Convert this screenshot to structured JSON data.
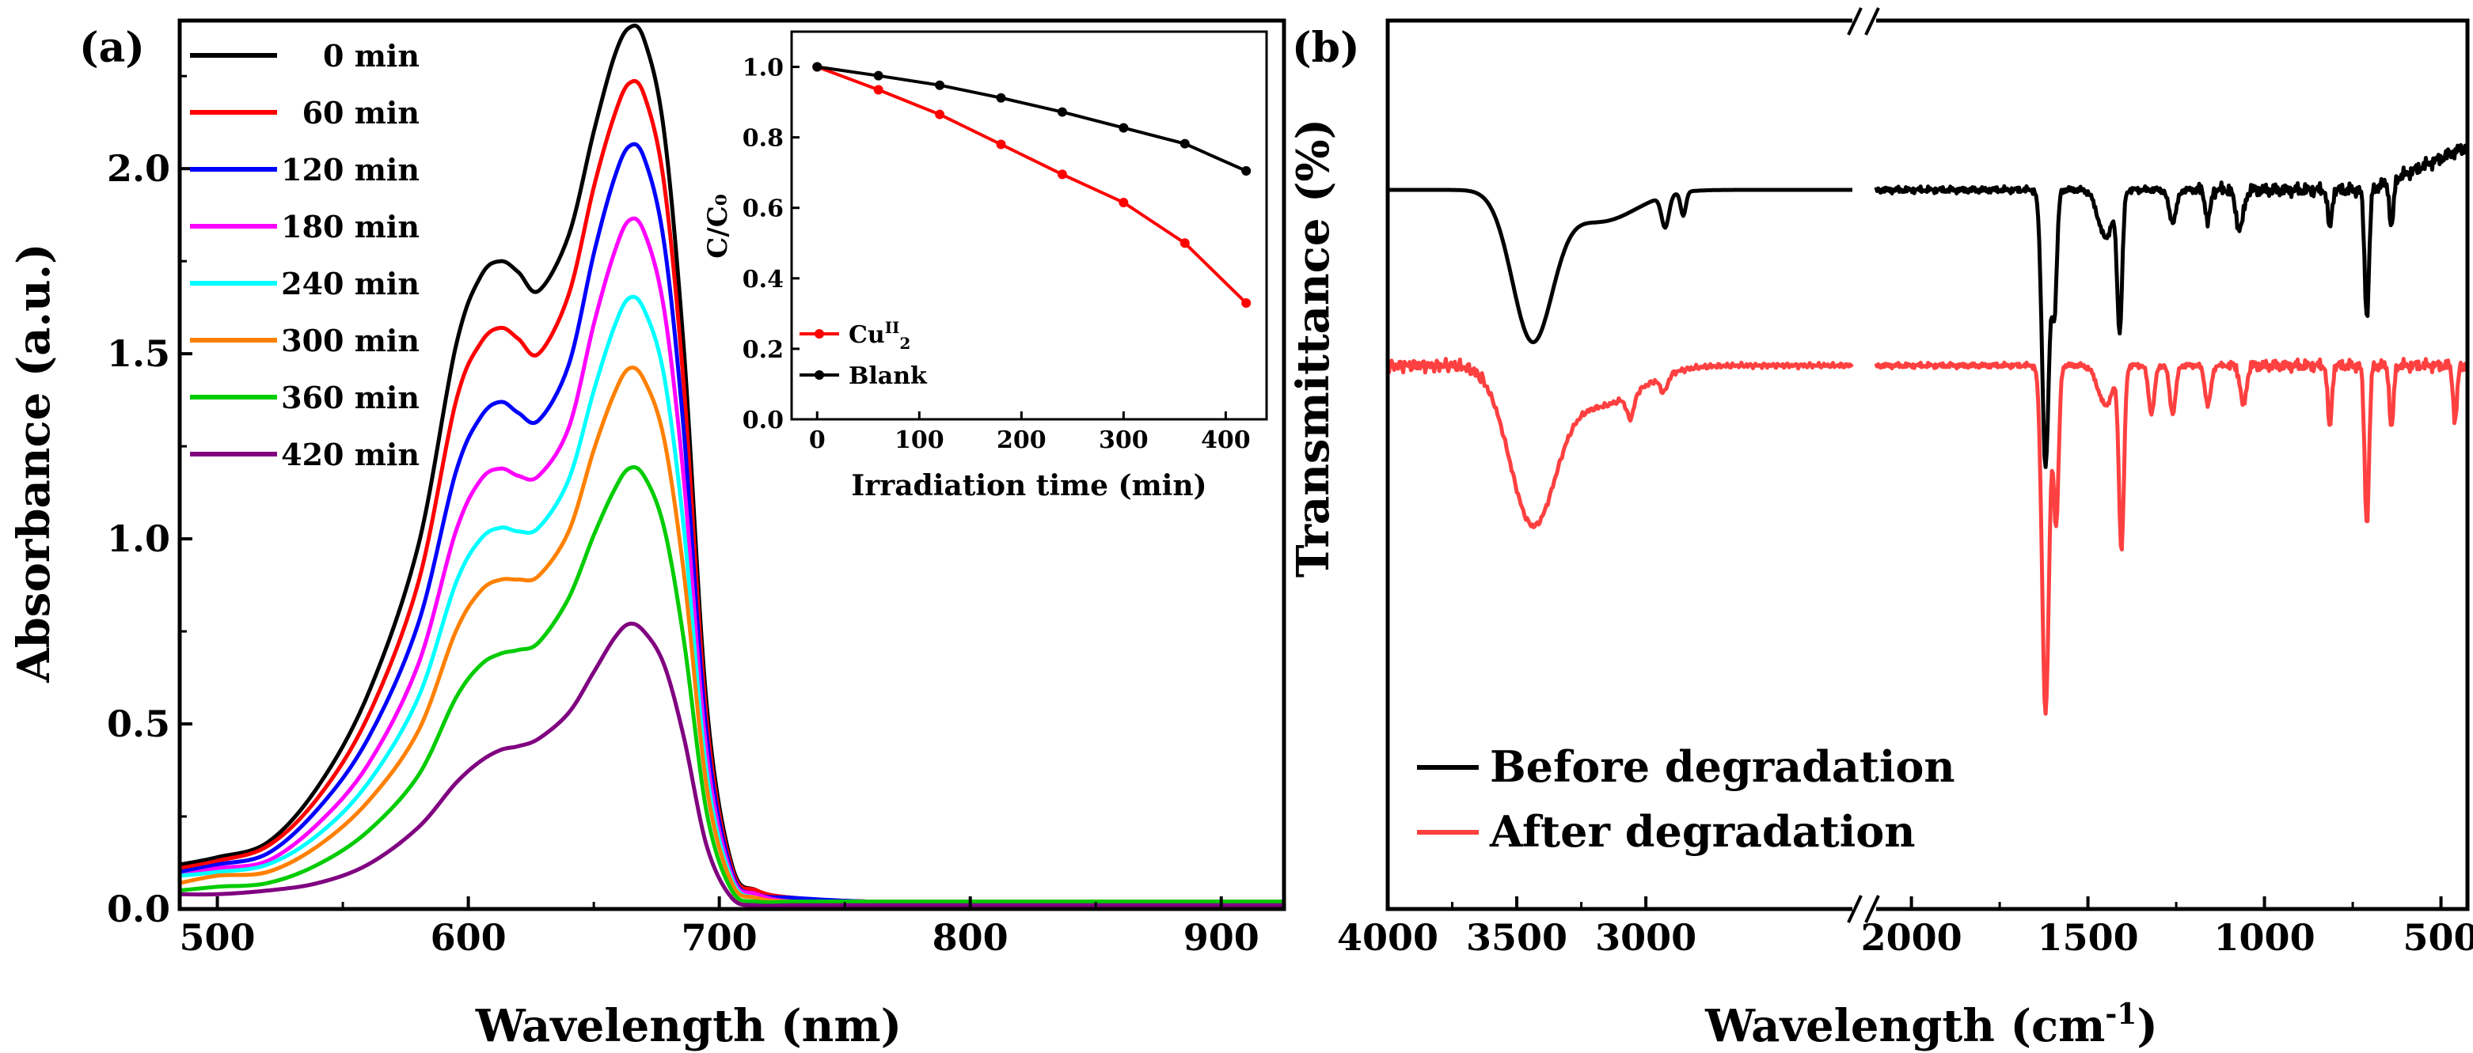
{
  "chart_data": [
    {
      "id": "a",
      "type": "line",
      "panel_label": "(a)",
      "xlabel": "Wavelength (nm)",
      "ylabel": "Absorbance (a.u.)",
      "xlim": [
        485,
        925
      ],
      "ylim": [
        0,
        2.4
      ],
      "xticks": [
        500,
        600,
        700,
        800,
        900
      ],
      "xtick_labels": [
        "500",
        "600",
        "700",
        "800",
        "900"
      ],
      "yticks": [
        0.0,
        0.5,
        1.0,
        1.5,
        2.0
      ],
      "ytick_labels": [
        "0.0",
        "0.5",
        "1.0",
        "1.5",
        "2.0"
      ],
      "legend_position": "top-left",
      "x": [
        485,
        500,
        520,
        540,
        560,
        580,
        595,
        605,
        613,
        620,
        628,
        640,
        650,
        658,
        664,
        670,
        678,
        686,
        695,
        705,
        715,
        730,
        760,
        800,
        850,
        925
      ],
      "series": [
        {
          "name": "0 min",
          "color": "#000000",
          "values": [
            0.12,
            0.14,
            0.18,
            0.33,
            0.58,
            0.98,
            1.52,
            1.71,
            1.75,
            1.72,
            1.67,
            1.82,
            2.1,
            2.3,
            2.38,
            2.35,
            2.1,
            1.5,
            0.55,
            0.12,
            0.05,
            0.03,
            0.02,
            0.02,
            0.02,
            0.02
          ]
        },
        {
          "name": "60 min",
          "color": "#ff0000",
          "values": [
            0.11,
            0.13,
            0.17,
            0.3,
            0.52,
            0.88,
            1.37,
            1.53,
            1.57,
            1.54,
            1.5,
            1.66,
            1.95,
            2.14,
            2.23,
            2.2,
            1.96,
            1.4,
            0.51,
            0.11,
            0.05,
            0.03,
            0.02,
            0.02,
            0.02,
            0.02
          ]
        },
        {
          "name": "120 min",
          "color": "#0000ff",
          "values": [
            0.1,
            0.12,
            0.15,
            0.27,
            0.46,
            0.77,
            1.18,
            1.33,
            1.37,
            1.34,
            1.32,
            1.47,
            1.77,
            1.97,
            2.06,
            2.03,
            1.8,
            1.28,
            0.47,
            0.1,
            0.04,
            0.03,
            0.02,
            0.02,
            0.02,
            0.02
          ]
        },
        {
          "name": "180 min",
          "color": "#ff00ff",
          "values": [
            0.09,
            0.11,
            0.13,
            0.23,
            0.39,
            0.66,
            1.02,
            1.16,
            1.19,
            1.17,
            1.17,
            1.3,
            1.58,
            1.77,
            1.86,
            1.83,
            1.62,
            1.15,
            0.42,
            0.09,
            0.04,
            0.02,
            0.02,
            0.02,
            0.02,
            0.02
          ]
        },
        {
          "name": "240 min",
          "color": "#00ffff",
          "values": [
            0.09,
            0.1,
            0.12,
            0.2,
            0.34,
            0.57,
            0.88,
            1.0,
            1.03,
            1.02,
            1.03,
            1.16,
            1.4,
            1.57,
            1.65,
            1.62,
            1.44,
            1.02,
            0.37,
            0.08,
            0.03,
            0.02,
            0.02,
            0.02,
            0.02,
            0.02
          ]
        },
        {
          "name": "300 min",
          "color": "#ff8000",
          "values": [
            0.07,
            0.09,
            0.1,
            0.17,
            0.29,
            0.48,
            0.75,
            0.86,
            0.89,
            0.89,
            0.9,
            1.02,
            1.24,
            1.39,
            1.46,
            1.43,
            1.27,
            0.9,
            0.33,
            0.07,
            0.03,
            0.02,
            0.02,
            0.02,
            0.02,
            0.02
          ]
        },
        {
          "name": "360 min",
          "color": "#00cc00",
          "values": [
            0.05,
            0.06,
            0.07,
            0.12,
            0.21,
            0.36,
            0.57,
            0.66,
            0.69,
            0.7,
            0.72,
            0.84,
            1.01,
            1.13,
            1.19,
            1.17,
            1.03,
            0.72,
            0.26,
            0.05,
            0.02,
            0.02,
            0.02,
            0.02,
            0.02,
            0.02
          ]
        },
        {
          "name": "420 min",
          "color": "#800080",
          "values": [
            0.04,
            0.04,
            0.05,
            0.07,
            0.12,
            0.22,
            0.34,
            0.4,
            0.43,
            0.44,
            0.46,
            0.53,
            0.64,
            0.73,
            0.77,
            0.75,
            0.66,
            0.46,
            0.17,
            0.03,
            0.01,
            0.01,
            0.01,
            0.01,
            0.01,
            0.01
          ]
        }
      ]
    },
    {
      "id": "a-inset",
      "type": "line",
      "xlabel": "Irradiation time (min)",
      "ylabel": "C/C₀",
      "xlim": [
        -25,
        440
      ],
      "ylim": [
        0,
        1.1
      ],
      "xticks": [
        0,
        100,
        200,
        300,
        400
      ],
      "xtick_labels": [
        "0",
        "100",
        "200",
        "300",
        "400"
      ],
      "yticks": [
        0.0,
        0.2,
        0.4,
        0.6,
        0.8,
        1.0
      ],
      "ytick_labels": [
        "0.0",
        "0.2",
        "0.4",
        "0.6",
        "0.8",
        "1.0"
      ],
      "legend_position": "bottom-left",
      "x": [
        0,
        60,
        120,
        180,
        240,
        300,
        360,
        420
      ],
      "series": [
        {
          "name": "Cu",
          "sup": "II",
          "sub": "2",
          "color": "#ff0000",
          "values": [
            1.0,
            0.935,
            0.865,
            0.78,
            0.695,
            0.615,
            0.5,
            0.33
          ]
        },
        {
          "name": "Blank",
          "color": "#000000",
          "values": [
            1.0,
            0.975,
            0.948,
            0.912,
            0.872,
            0.827,
            0.782,
            0.705
          ]
        }
      ]
    },
    {
      "id": "b",
      "type": "line",
      "panel_label": "(b)",
      "xlabel": "Wavelength (cm",
      "xlabel_sup": "-1",
      "xlabel_end": ")",
      "ylabel": "Transmittance (%)",
      "x_axis_break": [
        2100,
        2200
      ],
      "xticks": [
        4000,
        3500,
        3000,
        2000,
        1500,
        1000,
        500
      ],
      "xtick_labels": [
        "4000",
        "3500",
        "3000",
        "2000",
        "1500",
        "1000",
        "500"
      ],
      "legend_position": "bottom-left",
      "series": [
        {
          "name": "Before degradation",
          "color": "#000000"
        },
        {
          "name": "After degradation",
          "color": "#ff4040"
        }
      ]
    }
  ]
}
